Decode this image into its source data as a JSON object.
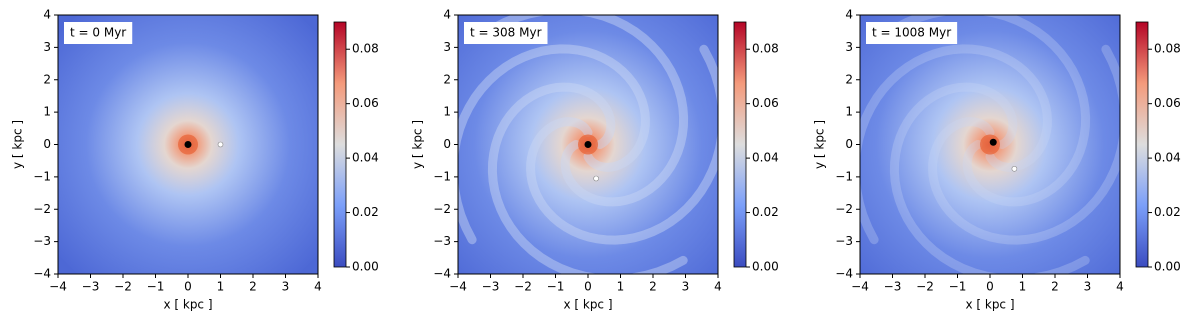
{
  "chart_data": [
    {
      "type": "scatter",
      "annotation": "t = 0 Myr",
      "xlabel": "x [ kpc ]",
      "ylabel": "y [ kpc ]",
      "xlim": [
        -4,
        4
      ],
      "ylim": [
        -4,
        4
      ],
      "xticks": [
        {
          "value": -4,
          "label": "−4"
        },
        {
          "value": -3,
          "label": "−3"
        },
        {
          "value": -2,
          "label": "−2"
        },
        {
          "value": -1,
          "label": "−1"
        },
        0,
        1,
        2,
        3,
        4
      ],
      "yticks": [
        {
          "value": -4,
          "label": "−4"
        },
        {
          "value": -3,
          "label": "−3"
        },
        {
          "value": -2,
          "label": "−2"
        },
        {
          "value": -1,
          "label": "−1"
        },
        0,
        1,
        2,
        3,
        4
      ],
      "clim": [
        0,
        0.09
      ],
      "cticks": [
        {
          "value": 0,
          "label": "0.00"
        },
        {
          "value": 0.02,
          "label": "0.02"
        },
        {
          "value": 0.04,
          "label": "0.04"
        },
        {
          "value": 0.06,
          "label": "0.06"
        },
        {
          "value": 0.08,
          "label": "0.08"
        }
      ],
      "series": [
        {
          "color": "#000000",
          "x": [
            0
          ],
          "y": [
            0
          ]
        },
        {
          "color": "#ffffff",
          "x": [
            1
          ],
          "y": [
            0
          ]
        }
      ]
    },
    {
      "type": "scatter",
      "annotation": "t = 308 Myr",
      "xlabel": "x [ kpc ]",
      "ylabel": "y [ kpc ]",
      "xlim": [
        -4,
        4
      ],
      "ylim": [
        -4,
        4
      ],
      "xticks": [
        {
          "value": -4,
          "label": "−4"
        },
        {
          "value": -3,
          "label": "−3"
        },
        {
          "value": -2,
          "label": "−2"
        },
        {
          "value": -1,
          "label": "−1"
        },
        0,
        1,
        2,
        3,
        4
      ],
      "yticks": [
        {
          "value": -4,
          "label": "−4"
        },
        {
          "value": -3,
          "label": "−3"
        },
        {
          "value": -2,
          "label": "−2"
        },
        {
          "value": -1,
          "label": "−1"
        },
        0,
        1,
        2,
        3,
        4
      ],
      "clim": [
        0,
        0.09
      ],
      "cticks": [
        {
          "value": 0,
          "label": "0.00"
        },
        {
          "value": 0.02,
          "label": "0.02"
        },
        {
          "value": 0.04,
          "label": "0.04"
        },
        {
          "value": 0.06,
          "label": "0.06"
        },
        {
          "value": 0.08,
          "label": "0.08"
        }
      ],
      "series": [
        {
          "color": "#000000",
          "x": [
            0
          ],
          "y": [
            0
          ]
        },
        {
          "color": "#ffffff",
          "x": [
            0.25
          ],
          "y": [
            -1.05
          ]
        }
      ]
    },
    {
      "type": "scatter",
      "annotation": "t = 1008 Myr",
      "xlabel": "x [ kpc ]",
      "ylabel": "y [ kpc ]",
      "xlim": [
        -4,
        4
      ],
      "ylim": [
        -4,
        4
      ],
      "xticks": [
        {
          "value": -4,
          "label": "−4"
        },
        {
          "value": -3,
          "label": "−3"
        },
        {
          "value": -2,
          "label": "−2"
        },
        {
          "value": -1,
          "label": "−1"
        },
        0,
        1,
        2,
        3,
        4
      ],
      "yticks": [
        {
          "value": -4,
          "label": "−4"
        },
        {
          "value": -3,
          "label": "−3"
        },
        {
          "value": -2,
          "label": "−2"
        },
        {
          "value": -1,
          "label": "−1"
        },
        0,
        1,
        2,
        3,
        4
      ],
      "clim": [
        0,
        0.09
      ],
      "cticks": [
        {
          "value": 0,
          "label": "0.00"
        },
        {
          "value": 0.02,
          "label": "0.02"
        },
        {
          "value": 0.04,
          "label": "0.04"
        },
        {
          "value": 0.06,
          "label": "0.06"
        },
        {
          "value": 0.08,
          "label": "0.08"
        }
      ],
      "series": [
        {
          "color": "#000000",
          "x": [
            0.1
          ],
          "y": [
            0.07
          ]
        },
        {
          "color": "#ffffff",
          "x": [
            0.75
          ],
          "y": [
            -0.75
          ]
        }
      ]
    }
  ]
}
